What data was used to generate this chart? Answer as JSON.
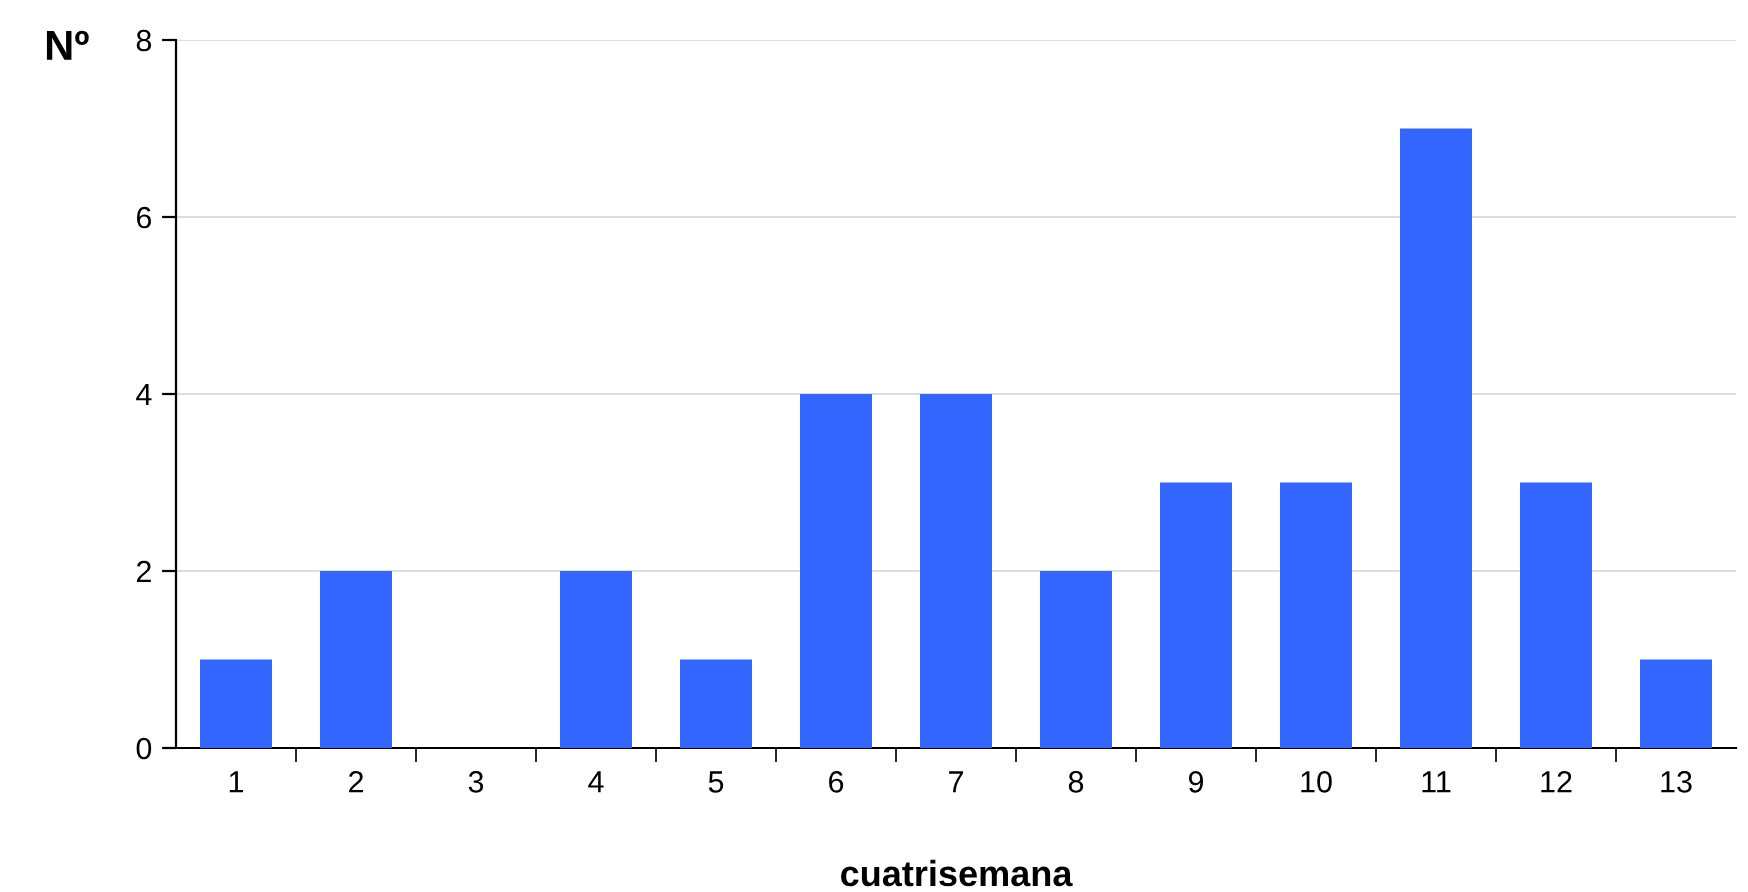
{
  "chart_data": {
    "type": "bar",
    "xlabel": "cuatrisemana",
    "ylabel": "Nº",
    "categories": [
      "1",
      "2",
      "3",
      "4",
      "5",
      "6",
      "7",
      "8",
      "9",
      "10",
      "11",
      "12",
      "13"
    ],
    "values": [
      1,
      2,
      0,
      2,
      1,
      4,
      4,
      2,
      3,
      3,
      7,
      3,
      1
    ],
    "color": "#3366ff",
    "ylim": [
      0,
      8
    ],
    "yticks": [
      0,
      2,
      4,
      6,
      8
    ],
    "grid": "y"
  }
}
